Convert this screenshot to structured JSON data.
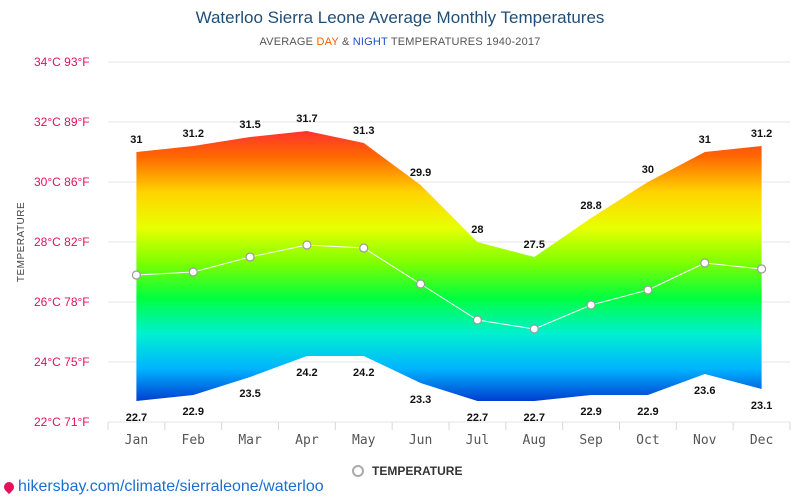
{
  "title": "Waterloo Sierra Leone Average Monthly Temperatures",
  "subtitle": {
    "prefix": "AVERAGE ",
    "day": "DAY",
    "amp": " & ",
    "night": "NIGHT",
    "suffix": " TEMPERATURES 1940-2017"
  },
  "source": "hikersbay.com/climate/sierraleone/waterloo",
  "legend": "TEMPERATURE",
  "chart_data": {
    "type": "area",
    "categories": [
      "Jan",
      "Feb",
      "Mar",
      "Apr",
      "May",
      "Jun",
      "Jul",
      "Aug",
      "Sep",
      "Oct",
      "Nov",
      "Dec"
    ],
    "series": [
      {
        "name": "",
        "role": "day",
        "values": [
          31,
          31.2,
          31.5,
          31.7,
          31.3,
          29.9,
          28,
          27.5,
          28.8,
          30,
          31,
          31.2
        ]
      },
      {
        "name": "",
        "role": "night",
        "values": [
          22.7,
          22.9,
          23.5,
          24.2,
          24.2,
          23.3,
          22.7,
          22.7,
          22.9,
          22.9,
          23.6,
          23.1
        ]
      },
      {
        "name": "TEMPERATURE",
        "role": "average",
        "values": [
          26.9,
          27.0,
          27.5,
          27.9,
          27.8,
          26.6,
          25.4,
          25.1,
          25.9,
          26.4,
          27.3,
          27.1
        ]
      }
    ],
    "yticks": [
      "22°C 71°F",
      "24°C 75°F",
      "26°C 78°F",
      "28°C 82°F",
      "30°C 86°F",
      "32°C 89°F",
      "34°C 93°F"
    ],
    "ylabel": "TEMPERATURE",
    "ylim": [
      22,
      34
    ],
    "grid": true,
    "legend_position": "bottom-center"
  },
  "colors": {
    "tick_text": "#e3115a",
    "average_line": "#ffffff",
    "gradient": [
      "#ff1f3d",
      "#ff6a00",
      "#ffd400",
      "#e8ff00",
      "#7dff00",
      "#00ff40",
      "#00f0d0",
      "#00b4ff",
      "#0033cc"
    ]
  }
}
